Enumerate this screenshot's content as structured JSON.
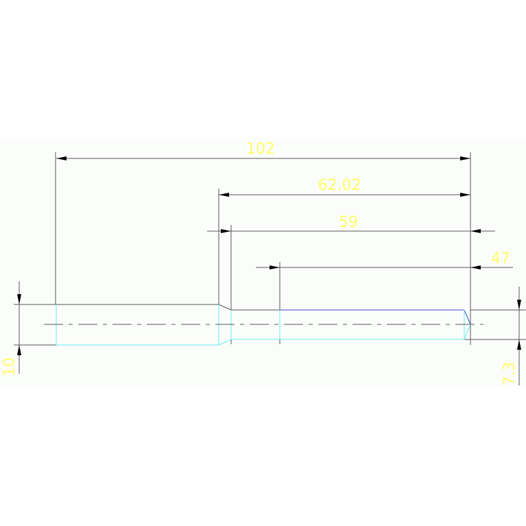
{
  "drawing": {
    "dimensions": {
      "overall_length": "102",
      "length_62": "62.02",
      "length_59": "59",
      "length_47": "47",
      "left_diameter": "10",
      "right_diameter": "7.3"
    },
    "colors": {
      "dimension_text": "#ffff66",
      "outline": "#555555",
      "hidden_edge": "#66eeee",
      "highlight_edge": "#4444cc",
      "background": "#fbfdfb"
    }
  }
}
